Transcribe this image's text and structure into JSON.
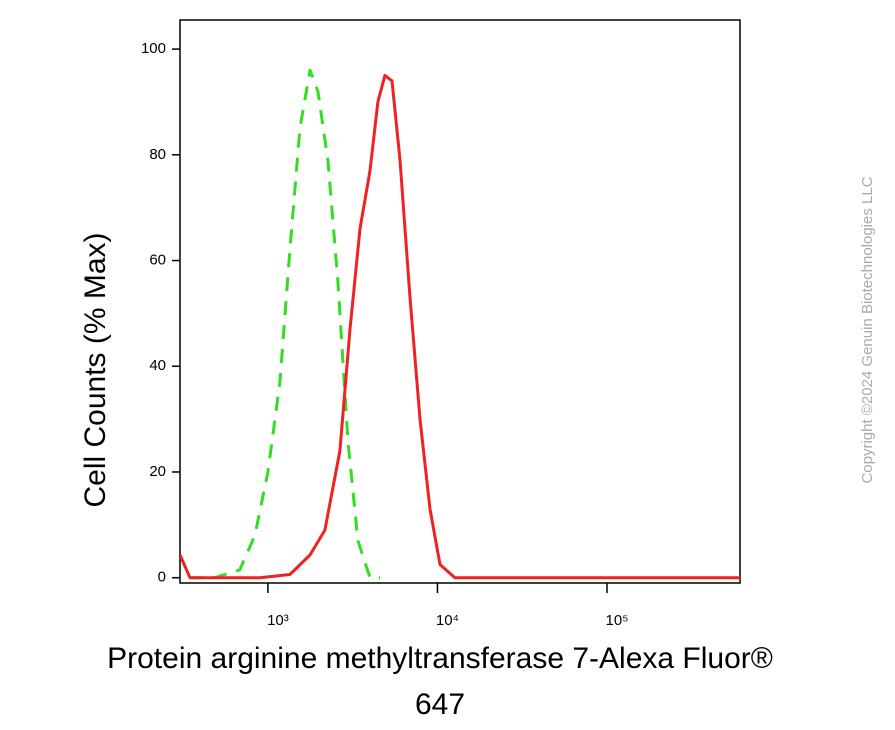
{
  "chart_data": {
    "type": "line",
    "x_label": [
      "Protein arginine methyltransferase 7-Alexa Fluor®",
      "647"
    ],
    "y_label": "Cell Counts (% Max)",
    "copyright": "Copyright ©2024 Genuin Biotechnologies LLC",
    "xscale": "log",
    "xlim": [
      303,
      609000
    ],
    "ylim": [
      -1,
      105.5
    ],
    "xticks": [
      {
        "value": 1000,
        "label": "10³"
      },
      {
        "value": 10000,
        "label": "10⁴"
      },
      {
        "value": 100000,
        "label": "10⁵"
      }
    ],
    "yticks": [
      0,
      20,
      40,
      60,
      80,
      100
    ],
    "series": [
      {
        "color": "#33dd22",
        "dash": true,
        "x": [
          303,
          347,
          487,
          683,
          838,
          1000,
          1177,
          1348,
          1545,
          1770,
          1973,
          2260,
          2588,
          2964,
          3396,
          3999,
          4581
        ],
        "values": [
          4.3,
          0,
          0,
          1.5,
          8,
          20,
          37,
          62,
          85,
          96,
          92,
          79,
          56,
          26,
          7,
          0,
          0
        ]
      },
      {
        "color": "#ee2222",
        "dash": false,
        "x": [
          303,
          347,
          600,
          897,
          1348,
          1770,
          2168,
          2660,
          3049,
          3492,
          3999,
          4457,
          4899,
          5392,
          6012,
          6887,
          7886,
          9036,
          10350,
          12680,
          91000,
          609000
        ],
        "values": [
          4.3,
          0,
          0,
          0,
          0.6,
          4.3,
          9,
          24,
          47,
          66,
          77,
          90,
          95,
          94,
          79,
          53,
          30,
          13,
          2.5,
          0,
          0,
          0
        ]
      }
    ]
  }
}
